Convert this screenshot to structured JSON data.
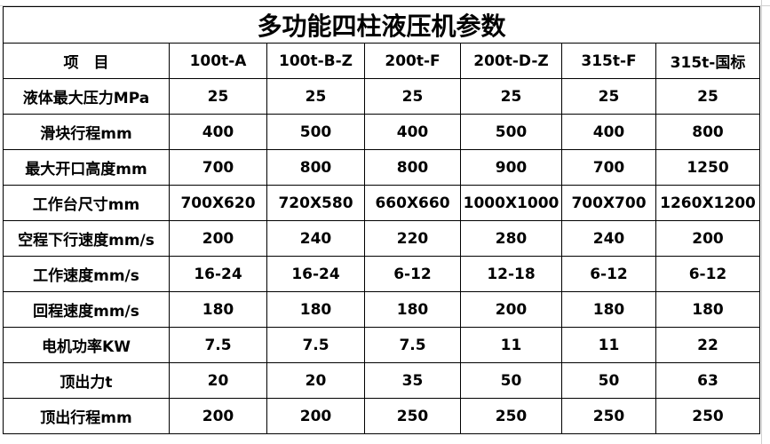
{
  "title": "多功能四柱液压机参数",
  "table": {
    "header": [
      "项　目",
      "100t-A",
      "100t-B-Z",
      "200t-F",
      "200t-D-Z",
      "315t-F",
      "315t-国标"
    ],
    "rows": [
      [
        "液体最大压力MPa",
        "25",
        "25",
        "25",
        "25",
        "25",
        "25"
      ],
      [
        "滑块行程mm",
        "400",
        "500",
        "400",
        "500",
        "400",
        "800"
      ],
      [
        "最大开口高度mm",
        "700",
        "800",
        "800",
        "900",
        "700",
        "1250"
      ],
      [
        "工作台尺寸mm",
        "700X620",
        "720X580",
        "660X660",
        "1000X1000",
        "700X700",
        "1260X1200"
      ],
      [
        "空程下行速度mm/s",
        "200",
        "240",
        "220",
        "280",
        "240",
        "200"
      ],
      [
        "工作速度mm/s",
        "16-24",
        "16-24",
        "6-12",
        "12-18",
        "6-12",
        "6-12"
      ],
      [
        "回程速度mm/s",
        "180",
        "180",
        "180",
        "200",
        "180",
        "180"
      ],
      [
        "电机功率KW",
        "7.5",
        "7.5",
        "7.5",
        "11",
        "11",
        "22"
      ],
      [
        "顶出力t",
        "20",
        "20",
        "35",
        "50",
        "50",
        "63"
      ],
      [
        "顶出行程mm",
        "200",
        "200",
        "250",
        "250",
        "250",
        "250"
      ]
    ]
  }
}
